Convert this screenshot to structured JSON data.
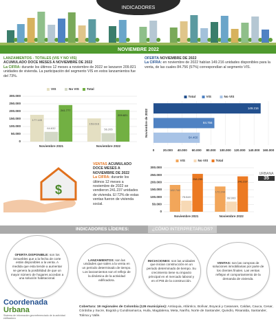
{
  "header": {
    "tab": "INDICADORES",
    "banner": "NOVIEMBRE 2022"
  },
  "launches": {
    "heading1": "LANZAMIENTOS - TOTALES (VIS Y NO VIS)",
    "heading2": "ACUMULADO DOCE MESES A NOVIEMBRE DE 2022",
    "lead": "La CIFRA:",
    "text": "durante los últimos 12 meses a noviembre de 2022 se lanzaron 209.821 unidades de vivienda. La participación del segmento VIS en estos lanzamientos fue del 73%."
  },
  "supply": {
    "heading1": "OFERTA",
    "heading2": "NOVIEMBRE DE 2022",
    "lead": "La CIFRA:",
    "text": "en noviembre de 2022 habían 149.216 unidades disponibles para la venta, de las cuales 84.756 (57%) correspondían al segmento VIS."
  },
  "sales": {
    "heading1": "VENTAS",
    "heading2": "ACUMULADO DOCE MESES A NOVIEMBRE DE 2022",
    "lead": "La CIFRA:",
    "text": "durante los últimos 12 meses a noviembre de 2022 se vendieron 241.237 unidades de vivienda. El 72% de estas ventas fueron de vivienda social."
  },
  "page": {
    "brand": "URBANA",
    "number": "35"
  },
  "leaders": {
    "title": "INDICADORES LÍDERES:",
    "subtitle": "¿CÓMO INTERPRETARLOS?",
    "items": [
      {
        "term": "OFERTA DISPONIBLE:",
        "text": "son los inmuebles que a la fecha de corte están disponibles a la venta. A medida que esta tiende a aumentar se genera la posibilidad de que un mayor número de hogares accedan a una solución habitacional."
      },
      {
        "term": "LANZAMIENTOS:",
        "text": "son las unidades que salen a la venta en un periodo determinado de tiempo. Los lanzamientos son el reflejo de la dinámica de la actividad edificadora."
      },
      {
        "term": "INICIACIONES:",
        "text": "son las unidades que inician construcción en un periodo determinado de tiempo. Su crecimiento tiene su impacto principal en el mercado laboral y en el PIB de la construcción."
      },
      {
        "term": "VENTAS:",
        "text": "son las compras de soluciones inmobiliarias por parte de los clientes finales. Las ventas reflejan el comportamiento de la demanda de vivienda."
      }
    ]
  },
  "footer": {
    "logo1": "Coordenada",
    "logo2": "Urbana",
    "logo_sub": "Sistema de información georreferenciado de la actividad edificadora",
    "coverage_lead": "Cobertura: 19 regionales de Colombia (126 municipios):",
    "coverage": "Antioquia, Atlántico, Bolívar, Boyacá y Casanare, Caldas, Cauca, Cesar, Córdoba y Sucre, Bogotá y Cundinamarca, Huila, Magdalena, Meta, Nariño, Norte de Santander, Quindío, Risaralda, Santander, Tolima y Valle."
  },
  "chart_data": [
    {
      "type": "bar",
      "categories": [
        "Noviembre 2021",
        "Noviembre 2022"
      ],
      "series": [
        {
          "name": "VIS",
          "color": "#e4dfc2",
          "values": [
            177145,
            153616
          ],
          "value_labels": [
            "177.145",
            "153.616"
          ]
        },
        {
          "name": "No VIS",
          "color": "#d3d8c6",
          "values": [
            64632,
            56205
          ],
          "value_labels": [
            "64.632",
            "56.205"
          ]
        },
        {
          "name": "Total",
          "color": "#72b043",
          "values": [
            241777,
            209821
          ],
          "value_labels": [
            "241.777",
            "209.821"
          ]
        }
      ],
      "ylim": [
        0,
        300000
      ],
      "yticks": [
        0,
        {
          "value": 50000,
          "label": "50.000"
        },
        {
          "value": 100000,
          "label": "100.000"
        },
        {
          "value": 150000,
          "label": "150.000"
        },
        {
          "value": 200000,
          "label": "200.000"
        },
        {
          "value": 250000,
          "label": "250.000"
        },
        {
          "value": 300000,
          "label": "300.000"
        }
      ],
      "grid": true
    },
    {
      "type": "hbar",
      "categories": [
        "Noviembre de 2022"
      ],
      "series": [
        {
          "name": "Total",
          "color": "#23508e",
          "values": [
            149216
          ],
          "value_labels": [
            "149.216"
          ]
        },
        {
          "name": "VIS",
          "color": "#4f82c3",
          "values": [
            84756
          ],
          "value_labels": [
            "84.756"
          ]
        },
        {
          "name": "No VIS",
          "color": "#a8c3e6",
          "values": [
            64460
          ],
          "value_labels": [
            "64.460"
          ]
        }
      ],
      "xlim": [
        0,
        160000
      ],
      "xticks": [
        0,
        {
          "value": 20000,
          "label": "20.000"
        },
        {
          "value": 40000,
          "label": "40.000"
        },
        {
          "value": 60000,
          "label": "60.000"
        },
        {
          "value": 80000,
          "label": "80.000"
        },
        {
          "value": 100000,
          "label": "100.000"
        },
        {
          "value": 120000,
          "label": "120.000"
        },
        {
          "value": 140000,
          "label": "140.000"
        },
        {
          "value": 160000,
          "label": "160.000"
        }
      ],
      "grid": true
    },
    {
      "type": "bar",
      "categories": [
        "Noviembre 2021",
        "Noviembre 2022"
      ],
      "series": [
        {
          "name": "VIS",
          "color": "#f2a65a",
          "values": [
            182746,
            172244
          ],
          "value_labels": [
            "182.746",
            "172.244"
          ]
        },
        {
          "name": "No VIS",
          "color": "#f7d9b5",
          "values": [
            75549,
            68993
          ],
          "value_labels": [
            "75.549",
            "68.993"
          ]
        },
        {
          "name": "Total",
          "color": "#ec7a23",
          "values": [
            258295,
            241237
          ],
          "value_labels": [
            "258.295",
            "241.237"
          ]
        }
      ],
      "ylim": [
        0,
        300000
      ],
      "yticks": [
        0,
        {
          "value": 50000,
          "label": "50.000"
        },
        {
          "value": 100000,
          "label": "100.000"
        },
        {
          "value": 150000,
          "label": "150.000"
        },
        {
          "value": 200000,
          "label": "200.000"
        },
        {
          "value": 250000,
          "label": "250.000"
        },
        {
          "value": 300000,
          "label": "300.000"
        }
      ],
      "grid": true
    }
  ]
}
